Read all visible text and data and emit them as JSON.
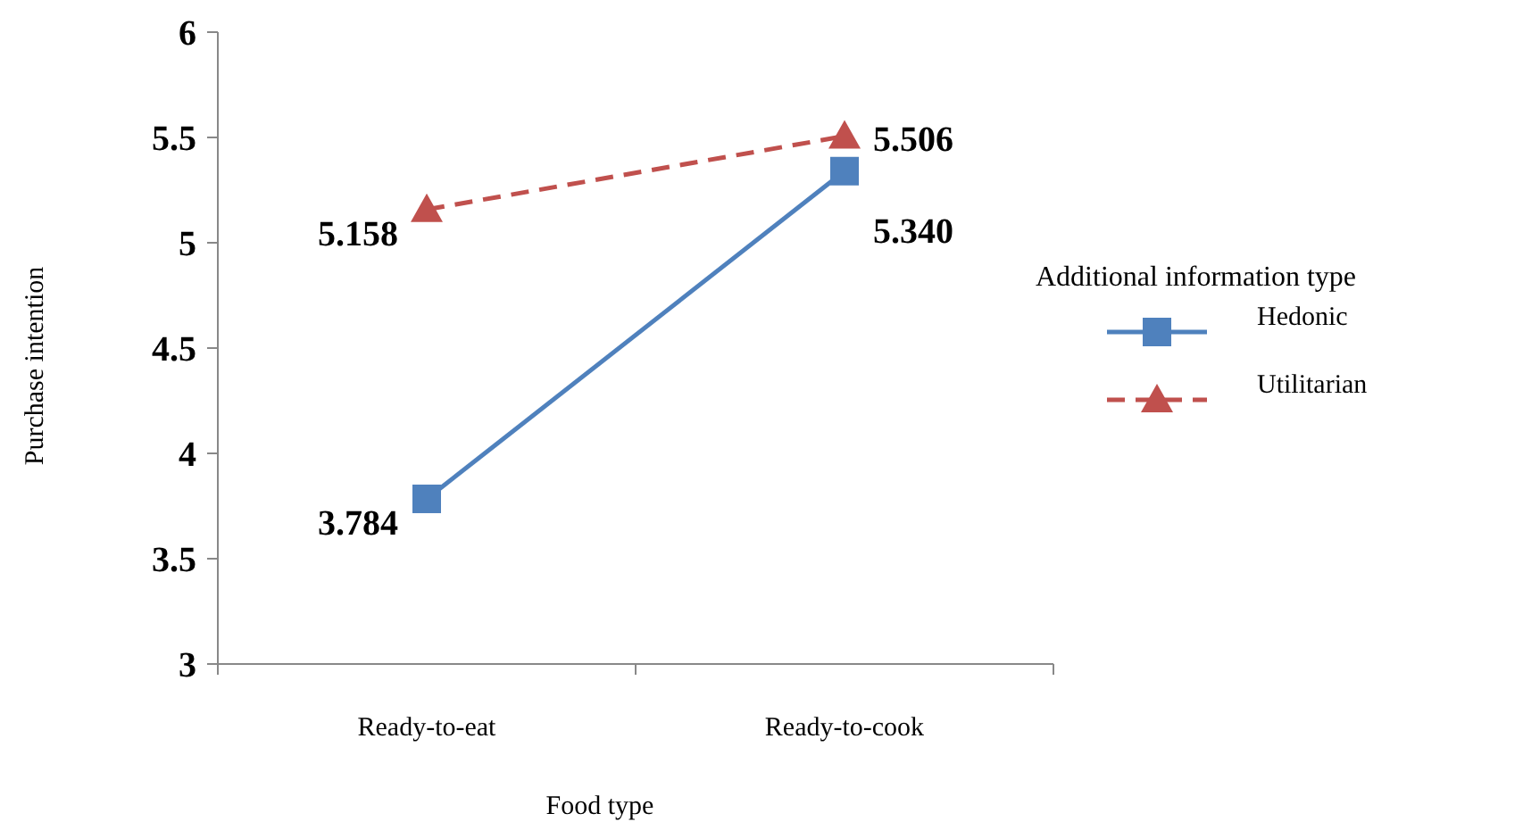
{
  "chart_data": {
    "type": "line",
    "xlabel": "Food type",
    "ylabel": "Purchase intention",
    "legend_title": "Additional information type",
    "legend": "right",
    "categories": [
      "Ready-to-eat",
      "Ready-to-cook"
    ],
    "ylim": [
      3,
      6
    ],
    "yticks": [
      3,
      3.5,
      4,
      4.5,
      5,
      5.5,
      6
    ],
    "series": [
      {
        "name": "Hedonic",
        "color": "#4f81bd",
        "values": [
          3.784,
          5.34
        ],
        "value_labels": [
          "3.784",
          "5.340"
        ],
        "marker": "square",
        "line_style": "solid"
      },
      {
        "name": "Utilitarian",
        "color": "#c0504d",
        "values": [
          5.158,
          5.506
        ],
        "value_labels": [
          "5.158",
          "5.506"
        ],
        "marker": "triangle",
        "line_style": "dashed"
      }
    ]
  }
}
